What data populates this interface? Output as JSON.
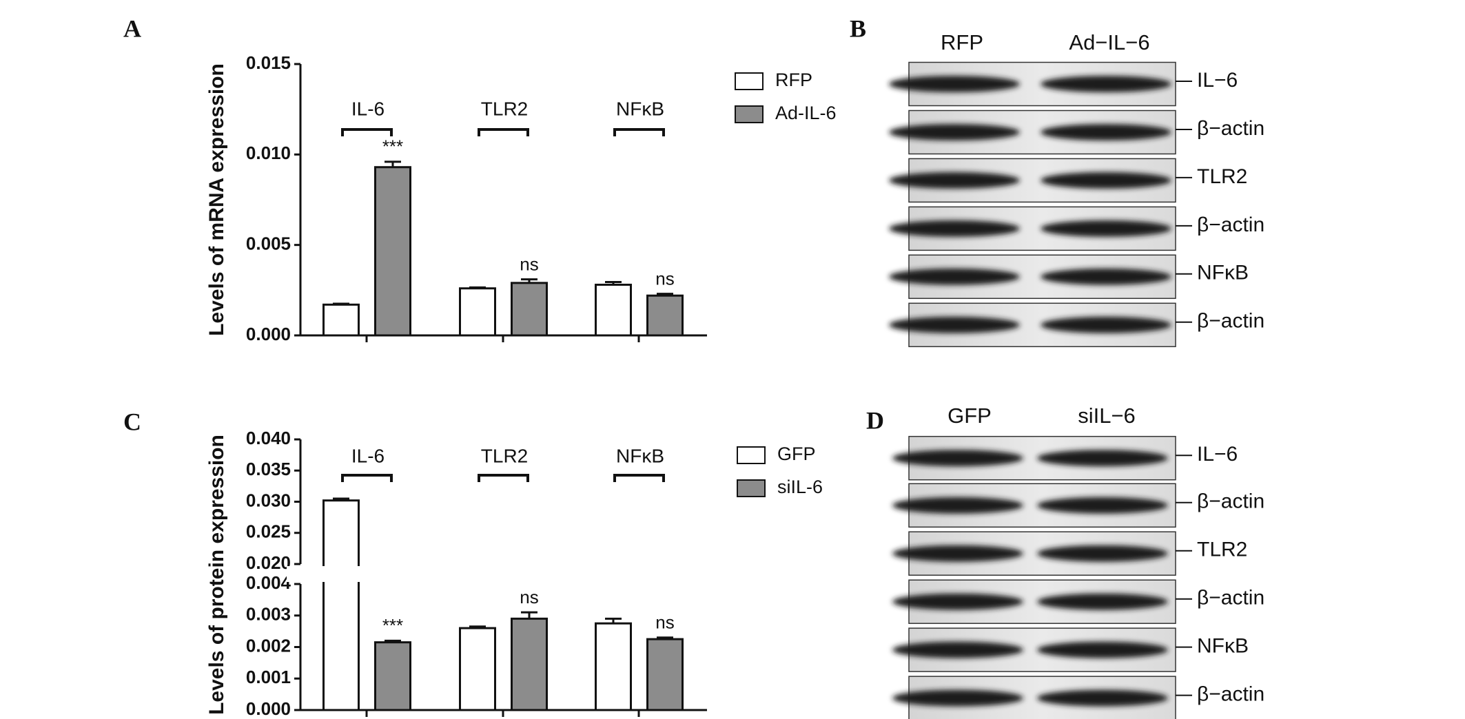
{
  "chart_data": [
    {
      "type": "bar",
      "panel_label": "A",
      "ylabel": "Levels of mRNA expression",
      "categories": [
        "IL-6",
        "TLR2",
        "NFκB"
      ],
      "series": [
        {
          "name": "RFP",
          "color": "#ffffff",
          "values": [
            0.0017,
            0.0026,
            0.0028
          ],
          "errors": [
            5e-05,
            5e-05,
            0.00015
          ]
        },
        {
          "name": "Ad-IL-6",
          "color": "#8c8c8c",
          "values": [
            0.0093,
            0.0029,
            0.0022
          ],
          "errors": [
            0.0003,
            0.0002,
            0.0001
          ]
        }
      ],
      "annotations": [
        "***",
        "ns",
        "ns"
      ],
      "ylim": [
        0,
        0.015
      ],
      "yticks": [
        {
          "value": 0,
          "label": "0.000"
        },
        {
          "value": 0.005,
          "label": "0.005"
        },
        {
          "value": 0.01,
          "label": "0.010"
        },
        {
          "value": 0.015,
          "label": "0.015"
        }
      ]
    },
    {
      "type": "bar",
      "panel_label": "C",
      "ylabel": "Levels of protein expression",
      "categories": [
        "IL-6",
        "TLR2",
        "NFκB"
      ],
      "series": [
        {
          "name": "GFP",
          "color": "#ffffff",
          "values": [
            0.0302,
            0.0026,
            0.00275
          ],
          "errors": [
            0.0003,
            5e-05,
            0.00015
          ]
        },
        {
          "name": "siIL-6",
          "color": "#8c8c8c",
          "values": [
            0.00215,
            0.0029,
            0.00225
          ],
          "errors": [
            5e-05,
            0.0002,
            5e-05
          ]
        }
      ],
      "annotations": [
        "***",
        "ns",
        "ns"
      ],
      "ylim": [
        0,
        0.04
      ],
      "ybreak": [
        0.004,
        0.02
      ],
      "yticks": [
        {
          "value": 0,
          "label": "0.000"
        },
        {
          "value": 0.001,
          "label": "0.001"
        },
        {
          "value": 0.002,
          "label": "0.002"
        },
        {
          "value": 0.003,
          "label": "0.003"
        },
        {
          "value": 0.004,
          "label": "0.004"
        },
        {
          "value": 0.02,
          "label": "0.020"
        },
        {
          "value": 0.025,
          "label": "0.025"
        },
        {
          "value": 0.03,
          "label": "0.030"
        },
        {
          "value": 0.035,
          "label": "0.035"
        },
        {
          "value": 0.04,
          "label": "0.040"
        }
      ]
    }
  ],
  "blots": [
    {
      "panel_label": "B",
      "lanes": [
        "RFP",
        "Ad−IL−6"
      ],
      "bands": [
        "IL−6",
        "β−actin",
        "TLR2",
        "β−actin",
        "NFκB",
        "β−actin"
      ]
    },
    {
      "panel_label": "D",
      "lanes": [
        "GFP",
        "siIL−6"
      ],
      "bands": [
        "IL−6",
        "β−actin",
        "TLR2",
        "β−actin",
        "NFκB",
        "β−actin"
      ]
    }
  ]
}
